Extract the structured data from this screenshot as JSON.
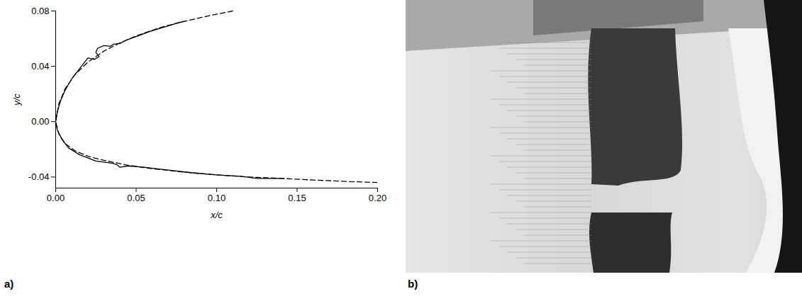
{
  "chart_data": {
    "type": "line",
    "panel_label": "a)",
    "xlabel": "x/c",
    "ylabel": "y/c",
    "xlim": [
      0,
      0.2
    ],
    "xticks": [
      {
        "value": 0,
        "label": "0.00"
      },
      {
        "value": 0.05,
        "label": "0.05"
      },
      {
        "value": 0.1,
        "label": "0.10"
      },
      {
        "value": 0.15,
        "label": "0.15"
      },
      {
        "value": 0.2,
        "label": "0.20"
      }
    ],
    "ylim": [
      -0.048,
      0.08
    ],
    "yticks": [
      {
        "value": -0.04,
        "label": "-0.04"
      },
      {
        "value": 0,
        "label": "0.00"
      },
      {
        "value": 0.04,
        "label": "0.04"
      },
      {
        "value": 0.08,
        "label": "0.08"
      }
    ],
    "grid": false,
    "series": [
      {
        "color": "#000000",
        "line_style": "dashed",
        "x": [
          0.11,
          0.095,
          0.08,
          0.065,
          0.05,
          0.04,
          0.03,
          0.02,
          0.012,
          0.006,
          0.002,
          0.0,
          0.002,
          0.006,
          0.012,
          0.02,
          0.03,
          0.045,
          0.06,
          0.08,
          0.1,
          0.12,
          0.14,
          0.16,
          0.18,
          0.2
        ],
        "values": [
          0.08,
          0.0765,
          0.0725,
          0.068,
          0.062,
          0.057,
          0.051,
          0.043,
          0.034,
          0.024,
          0.013,
          0.0,
          -0.009,
          -0.016,
          -0.021,
          -0.025,
          -0.028,
          -0.0315,
          -0.034,
          -0.0365,
          -0.0385,
          -0.04,
          -0.041,
          -0.0422,
          -0.0432,
          -0.044
        ]
      },
      {
        "color": "#000000",
        "line_style": "solid",
        "x": [
          0.08,
          0.076,
          0.072,
          0.065,
          0.058,
          0.05,
          0.044,
          0.04,
          0.036,
          0.034,
          0.03,
          0.026,
          0.025,
          0.027,
          0.024,
          0.02,
          0.016,
          0.01,
          0.006,
          0.003,
          0.001,
          0.0,
          0.001,
          0.004,
          0.008,
          0.015,
          0.025,
          0.035,
          0.038,
          0.04,
          0.045,
          0.055,
          0.07,
          0.085,
          0.1,
          0.115,
          0.125,
          0.135,
          0.142
        ],
        "values": [
          0.0725,
          0.0715,
          0.07,
          0.0675,
          0.065,
          0.0615,
          0.059,
          0.0565,
          0.056,
          0.0545,
          0.055,
          0.053,
          0.05,
          0.047,
          0.045,
          0.046,
          0.04,
          0.031,
          0.023,
          0.015,
          0.007,
          0.0,
          -0.006,
          -0.013,
          -0.019,
          -0.024,
          -0.0285,
          -0.03,
          -0.031,
          -0.033,
          -0.032,
          -0.033,
          -0.035,
          -0.037,
          -0.0385,
          -0.0395,
          -0.041,
          -0.041,
          -0.041
        ]
      }
    ]
  },
  "image_panel": {
    "panel_label": "b)"
  }
}
